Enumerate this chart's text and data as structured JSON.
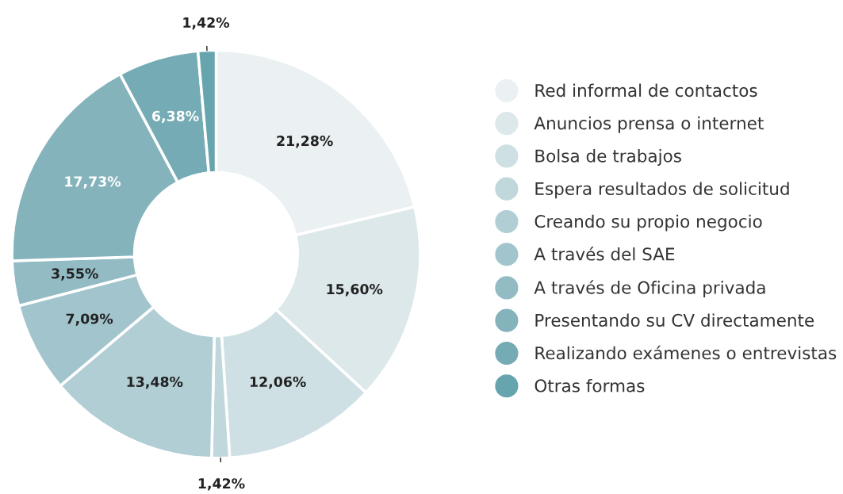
{
  "chart_data": {
    "type": "donut",
    "categories": [
      "Red informal de contactos",
      "Anuncios prensa o internet",
      "Bolsa de trabajos",
      "Espera resultados de solicitud",
      "Creando su propio negocio",
      "A través del SAE",
      "A través de Oficina privada",
      "Presentando su CV directamente",
      "Realizando exámenes o entrevistas",
      "Otras formas"
    ],
    "values": [
      21.28,
      15.6,
      12.06,
      1.42,
      13.48,
      7.09,
      3.55,
      17.73,
      6.38,
      1.42
    ],
    "colors": [
      "#ebf1f3",
      "#dde8eb",
      "#cfe0e4",
      "#c0d7dc",
      "#b1ced5",
      "#a2c4cc",
      "#93bbc4",
      "#84b3bc",
      "#75abb4",
      "#66a4ae"
    ],
    "value_labels": [
      "21,28%",
      "15,60%",
      "12,06%",
      "1,42%",
      "13,48%",
      "7,09%",
      "3,55%",
      "17,73%",
      "6,38%",
      "1,42%"
    ],
    "legend": "right"
  }
}
